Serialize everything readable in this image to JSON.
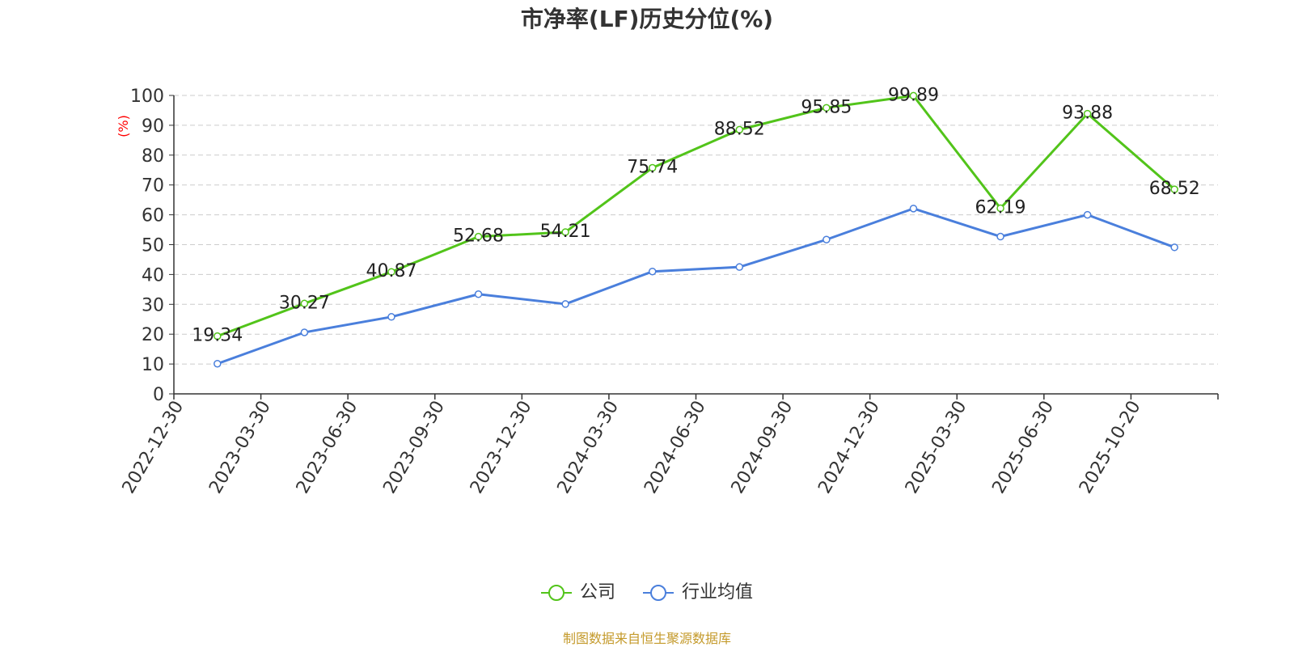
{
  "chart_data": {
    "type": "line",
    "title": "市净率(LF)历史分位(%)",
    "ylabel": "(%)",
    "xlabel": "",
    "ylim": [
      0,
      100
    ],
    "yticks": [
      0,
      10,
      20,
      30,
      40,
      50,
      60,
      70,
      80,
      90,
      100
    ],
    "grid": true,
    "legend_position": "bottom",
    "categories": [
      "2022-12-30",
      "2023-03-30",
      "2023-06-30",
      "2023-09-30",
      "2023-12-30",
      "2024-03-30",
      "2024-06-30",
      "2024-09-30",
      "2024-12-30",
      "2025-03-30",
      "2025-06-30",
      "2025-10-20"
    ],
    "series": [
      {
        "name": "公司",
        "color": "#52c41a",
        "show_labels": true,
        "values": [
          19.34,
          30.27,
          40.87,
          52.68,
          54.21,
          75.74,
          88.52,
          95.85,
          99.89,
          62.19,
          93.88,
          68.52
        ]
      },
      {
        "name": "行业均值",
        "color": "#4a7fdc",
        "show_labels": false,
        "values": [
          10.1,
          20.6,
          25.8,
          33.4,
          30.1,
          41.0,
          42.5,
          51.7,
          62.1,
          52.7,
          60.0,
          49.1
        ]
      }
    ]
  },
  "footer": {
    "source": "制图数据来自恒生聚源数据库"
  }
}
